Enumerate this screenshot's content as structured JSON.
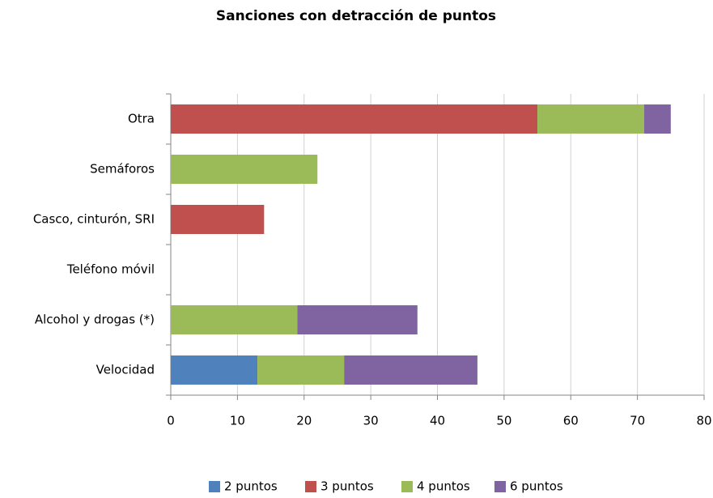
{
  "chart_data": {
    "type": "bar",
    "orientation": "horizontal",
    "stacked": true,
    "title": "Sanciones con detracción de puntos",
    "categories": [
      "Velocidad",
      "Alcohol y drogas (*)",
      "Teléfono móvil",
      "Casco, cinturón, SRI",
      "Semáforos",
      "Otra"
    ],
    "series": [
      {
        "name": "2 puntos",
        "color": "#4f81bd",
        "values": [
          13,
          0,
          0,
          0,
          0,
          0
        ]
      },
      {
        "name": "3 puntos",
        "color": "#c0504d",
        "values": [
          0,
          0,
          0,
          14,
          0,
          55
        ]
      },
      {
        "name": "4 puntos",
        "color": "#9bbb59",
        "values": [
          13,
          19,
          0,
          0,
          22,
          16
        ]
      },
      {
        "name": "6 puntos",
        "color": "#8064a2",
        "values": [
          20,
          18,
          0,
          0,
          0,
          4
        ]
      }
    ],
    "xlim": [
      0,
      80
    ],
    "xticks": [
      0,
      10,
      20,
      30,
      40,
      50,
      60,
      70,
      80
    ],
    "grid": true,
    "legend": "bottom"
  }
}
